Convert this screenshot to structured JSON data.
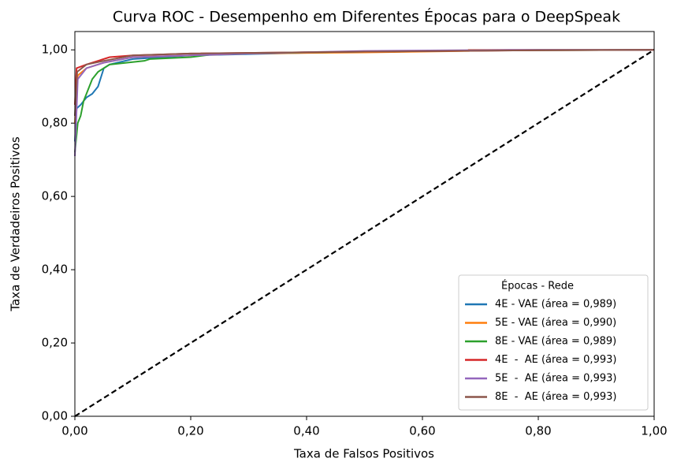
{
  "chart_data": {
    "type": "line",
    "title": "Curva ROC - Desempenho em Diferentes Épocas para o DeepSpeak",
    "xlabel": "Taxa de Falsos Positivos",
    "ylabel": "Taxa de Verdadeiros Positivos",
    "xlim": [
      0,
      1
    ],
    "ylim": [
      0,
      1.05
    ],
    "xticks": [
      {
        "value": 0,
        "label": "0,00"
      },
      {
        "value": 0.2,
        "label": "0,20"
      },
      {
        "value": 0.4,
        "label": "0,40"
      },
      {
        "value": 0.6,
        "label": "0,60"
      },
      {
        "value": 0.8,
        "label": "0,80"
      },
      {
        "value": 1,
        "label": "1,00"
      }
    ],
    "yticks": [
      {
        "value": 0,
        "label": "0,00"
      },
      {
        "value": 0.2,
        "label": "0,20"
      },
      {
        "value": 0.4,
        "label": "0,40"
      },
      {
        "value": 0.6,
        "label": "0,60"
      },
      {
        "value": 0.8,
        "label": "0,80"
      },
      {
        "value": 1,
        "label": "1,00"
      }
    ],
    "grid": false,
    "legend_title": "Épocas - Rede",
    "legend_position": "lower right",
    "series": [
      {
        "name": "4E - VAE (área = 0,989)",
        "color": "#1f77b4",
        "x": [
          0,
          0.003,
          0.01,
          0.015,
          0.02,
          0.03,
          0.04,
          0.05,
          0.06,
          0.1,
          0.2,
          0.4,
          0.6,
          0.8,
          1
        ],
        "values": [
          0.75,
          0.84,
          0.85,
          0.86,
          0.87,
          0.88,
          0.9,
          0.95,
          0.96,
          0.975,
          0.985,
          0.992,
          0.997,
          1.0,
          1
        ]
      },
      {
        "name": "5E - VAE (área = 0,990)",
        "color": "#ff7f0e",
        "x": [
          0,
          0.005,
          0.02,
          0.05,
          0.1,
          0.3,
          0.5,
          0.68,
          0.68,
          1
        ],
        "values": [
          0.8,
          0.93,
          0.95,
          0.965,
          0.98,
          0.99,
          0.993,
          0.997,
          1.0,
          1
        ]
      },
      {
        "name": "8E - VAE (área = 0,989)",
        "color": "#2ca02c",
        "x": [
          0,
          0.005,
          0.01,
          0.015,
          0.02,
          0.03,
          0.04,
          0.06,
          0.12,
          0.13,
          0.2,
          0.25,
          0.5,
          0.7,
          1
        ],
        "values": [
          0.72,
          0.8,
          0.82,
          0.86,
          0.88,
          0.92,
          0.94,
          0.96,
          0.97,
          0.975,
          0.98,
          0.99,
          0.995,
          0.998,
          1
        ]
      },
      {
        "name": "4E  -  AE (área = 0,993)",
        "color": "#d62728",
        "x": [
          0,
          0.003,
          0.02,
          0.04,
          0.06,
          0.1,
          0.2,
          0.5,
          0.8,
          1
        ],
        "values": [
          0.85,
          0.95,
          0.96,
          0.97,
          0.98,
          0.985,
          0.99,
          0.995,
          0.999,
          1
        ]
      },
      {
        "name": "5E  -  AE (área = 0,993)",
        "color": "#9467bd",
        "x": [
          0,
          0.005,
          0.02,
          0.05,
          0.1,
          0.3,
          0.5,
          0.75,
          1
        ],
        "values": [
          0.71,
          0.92,
          0.95,
          0.965,
          0.98,
          0.99,
          0.997,
          1.0,
          1
        ]
      },
      {
        "name": "8E  -  AE (área = 0,993)",
        "color": "#8c564b",
        "x": [
          0,
          0.004,
          0.02,
          0.05,
          0.1,
          0.2,
          0.5,
          0.8,
          1
        ],
        "values": [
          0.82,
          0.94,
          0.96,
          0.97,
          0.985,
          0.99,
          0.995,
          0.999,
          1
        ]
      },
      {
        "color": "#000000",
        "dashed": true,
        "x": [
          0,
          1
        ],
        "values": [
          0,
          1
        ]
      }
    ]
  }
}
